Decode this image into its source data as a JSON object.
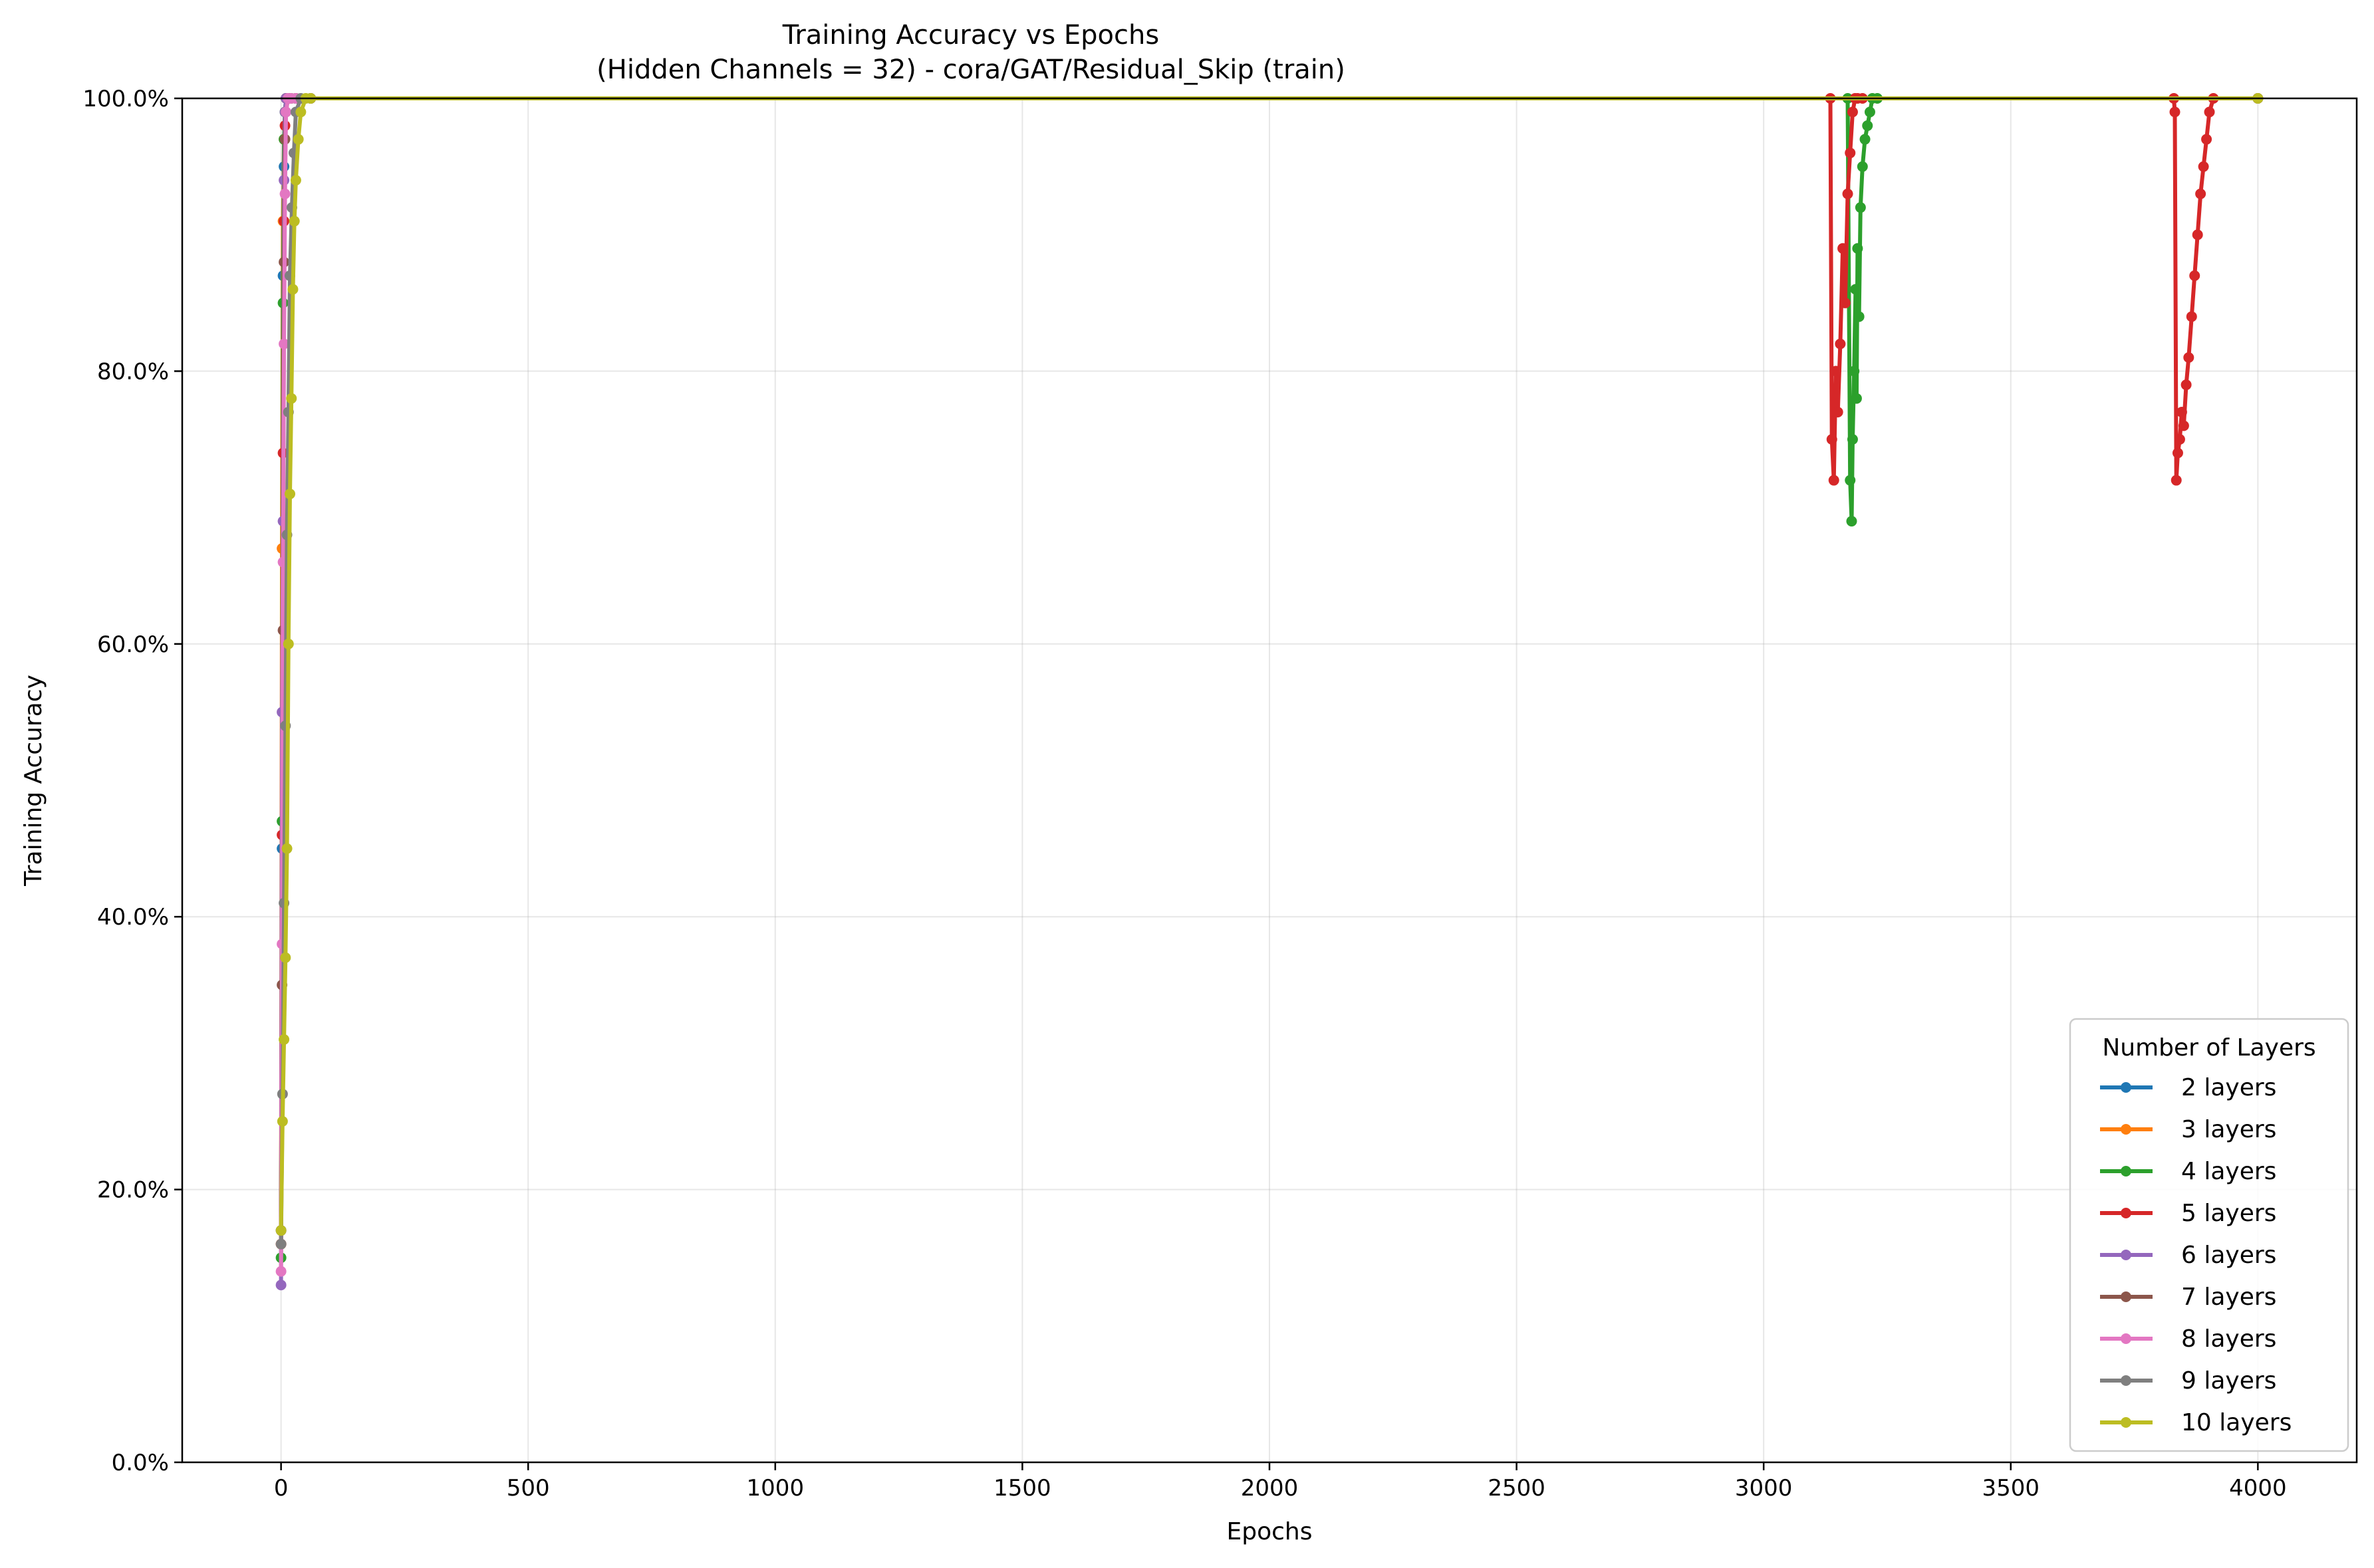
{
  "chart_data": {
    "type": "line",
    "title": "Training Accuracy vs Epochs",
    "subtitle": "(Hidden Channels = 32) - cora/GAT/Residual_Skip (train)",
    "xlabel": "Epochs",
    "ylabel": "Training Accuracy",
    "xlim": [
      -200,
      4200
    ],
    "ylim": [
      0,
      1
    ],
    "xticks": [
      0,
      500,
      1000,
      1500,
      2000,
      2500,
      3000,
      3500,
      4000
    ],
    "xtick_labels": [
      "0",
      "500",
      "1000",
      "1500",
      "2000",
      "2500",
      "3000",
      "3500",
      "4000"
    ],
    "yticks": [
      0,
      0.2,
      0.4,
      0.6,
      0.8,
      1.0
    ],
    "ytick_labels": [
      "0.0%",
      "20.0%",
      "40.0%",
      "60.0%",
      "80.0%",
      "100.0%"
    ],
    "grid": true,
    "legend": {
      "title": "Number of Layers",
      "placement": "lower-right"
    },
    "series": [
      {
        "name": "2 layers",
        "color": "#1f77b4",
        "x": [
          0,
          2,
          4,
          6,
          8,
          10,
          14,
          20,
          30,
          60,
          4000
        ],
        "y": [
          0.17,
          0.45,
          0.87,
          0.95,
          0.99,
          1.0,
          1.0,
          1.0,
          1.0,
          1.0,
          1.0
        ]
      },
      {
        "name": "3 layers",
        "color": "#ff7f0e",
        "x": [
          0,
          2,
          4,
          6,
          8,
          10,
          14,
          20,
          30,
          60,
          4000
        ],
        "y": [
          0.16,
          0.67,
          0.91,
          0.97,
          0.99,
          1.0,
          1.0,
          1.0,
          1.0,
          1.0,
          1.0
        ]
      },
      {
        "name": "4 layers",
        "color": "#2ca02c",
        "x": [
          0,
          2,
          4,
          6,
          8,
          10,
          14,
          20,
          30,
          60,
          3170,
          3175,
          3178,
          3180,
          3183,
          3186,
          3188,
          3190,
          3193,
          3196,
          3200,
          3205,
          3210,
          3215,
          3220,
          3230,
          4000
        ],
        "y": [
          0.15,
          0.47,
          0.85,
          0.97,
          0.99,
          1.0,
          1.0,
          1.0,
          1.0,
          1.0,
          1.0,
          0.72,
          0.69,
          0.75,
          0.8,
          0.86,
          0.78,
          0.89,
          0.84,
          0.92,
          0.95,
          0.97,
          0.98,
          0.99,
          1.0,
          1.0,
          1.0
        ]
      },
      {
        "name": "5 layers",
        "color": "#d62728",
        "x": [
          0,
          2,
          4,
          6,
          8,
          10,
          14,
          20,
          30,
          60,
          3135,
          3138,
          3142,
          3146,
          3150,
          3155,
          3160,
          3165,
          3170,
          3175,
          3180,
          3185,
          3190,
          3200,
          3830,
          3832,
          3835,
          3838,
          3842,
          3846,
          3850,
          3855,
          3860,
          3866,
          3872,
          3878,
          3884,
          3890,
          3896,
          3902,
          3910,
          4000
        ],
        "y": [
          0.16,
          0.46,
          0.74,
          0.91,
          0.98,
          1.0,
          1.0,
          1.0,
          1.0,
          1.0,
          1.0,
          0.75,
          0.72,
          0.8,
          0.77,
          0.82,
          0.89,
          0.85,
          0.93,
          0.96,
          0.99,
          1.0,
          1.0,
          1.0,
          1.0,
          0.99,
          0.72,
          0.74,
          0.75,
          0.77,
          0.76,
          0.79,
          0.81,
          0.84,
          0.87,
          0.9,
          0.93,
          0.95,
          0.97,
          0.99,
          1.0,
          1.0
        ]
      },
      {
        "name": "6 layers",
        "color": "#9467bd",
        "x": [
          0,
          2,
          4,
          6,
          8,
          10,
          14,
          20,
          30,
          60,
          4000
        ],
        "y": [
          0.13,
          0.55,
          0.69,
          0.94,
          0.99,
          1.0,
          1.0,
          1.0,
          1.0,
          1.0,
          1.0
        ]
      },
      {
        "name": "7 layers",
        "color": "#8c564b",
        "x": [
          0,
          2,
          4,
          6,
          8,
          10,
          14,
          20,
          30,
          60,
          4000
        ],
        "y": [
          0.17,
          0.35,
          0.61,
          0.88,
          0.97,
          0.99,
          1.0,
          1.0,
          1.0,
          1.0,
          1.0
        ]
      },
      {
        "name": "8 layers",
        "color": "#e377c2",
        "x": [
          0,
          2,
          4,
          6,
          8,
          10,
          14,
          20,
          30,
          60,
          4000
        ],
        "y": [
          0.14,
          0.38,
          0.66,
          0.82,
          0.93,
          0.99,
          1.0,
          1.0,
          1.0,
          1.0,
          1.0
        ]
      },
      {
        "name": "9 layers",
        "color": "#7f7f7f",
        "x": [
          0,
          3,
          6,
          9,
          12,
          15,
          18,
          22,
          26,
          30,
          40,
          60,
          4000
        ],
        "y": [
          0.16,
          0.27,
          0.41,
          0.54,
          0.68,
          0.77,
          0.87,
          0.92,
          0.96,
          0.99,
          1.0,
          1.0,
          1.0
        ]
      },
      {
        "name": "10 layers",
        "color": "#bcbd22",
        "x": [
          0,
          3,
          6,
          9,
          12,
          15,
          18,
          21,
          24,
          27,
          30,
          35,
          40,
          50,
          60,
          4000
        ],
        "y": [
          0.17,
          0.25,
          0.31,
          0.37,
          0.45,
          0.6,
          0.71,
          0.78,
          0.86,
          0.91,
          0.94,
          0.97,
          0.99,
          1.0,
          1.0,
          1.0
        ]
      }
    ]
  }
}
